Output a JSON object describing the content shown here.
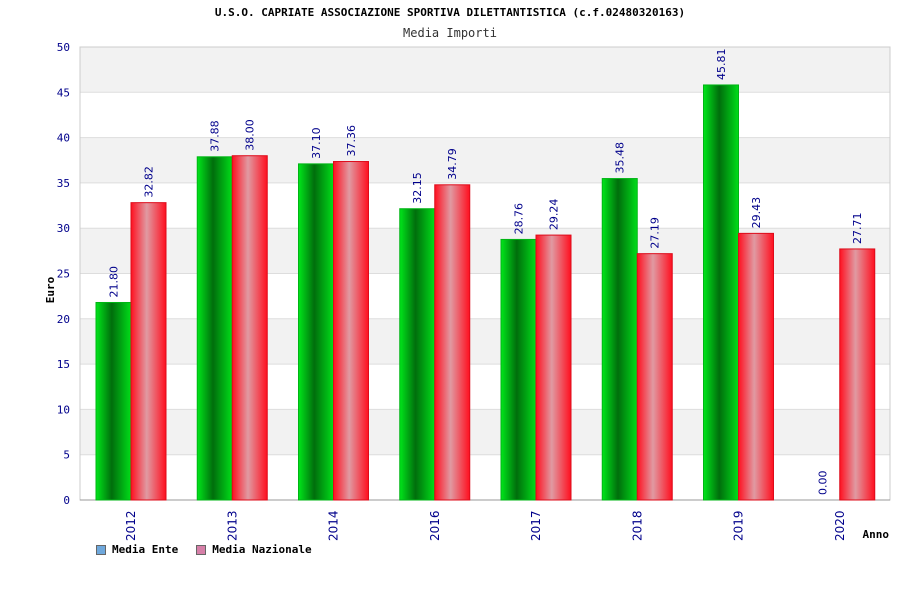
{
  "chart_data": {
    "type": "bar",
    "title": "U.S.O. CAPRIATE ASSOCIAZIONE SPORTIVA DILETTANTISTICA (c.f.02480320163)",
    "subtitle": "Media Importi",
    "xlabel": "Anno",
    "ylabel": "Euro",
    "ylim": [
      0,
      50
    ],
    "ytick_step": 5,
    "yticks": [
      "0",
      "5",
      "10",
      "15",
      "20",
      "25",
      "30",
      "35",
      "40",
      "45",
      "50"
    ],
    "grid": true,
    "legend_position": "bottom-left",
    "categories": [
      "2012",
      "2013",
      "2014",
      "2016",
      "2017",
      "2018",
      "2019",
      "2020"
    ],
    "series": [
      {
        "name": "Media Ente",
        "legend_color": "#6fa8dc",
        "bar_color": "#00cc00",
        "values": [
          21.8,
          37.88,
          37.1,
          32.15,
          28.76,
          35.48,
          45.81,
          0.0
        ],
        "labels": [
          "21.80",
          "37.88",
          "37.10",
          "32.15",
          "28.76",
          "35.48",
          "45.81",
          "0.00"
        ]
      },
      {
        "name": "Media Nazionale",
        "legend_color": "#d67fa8",
        "bar_color": "#ee1122",
        "values": [
          32.82,
          38.0,
          37.36,
          34.79,
          29.24,
          27.19,
          29.43,
          27.71
        ],
        "labels": [
          "32.82",
          "38.00",
          "37.36",
          "34.79",
          "29.24",
          "27.19",
          "29.43",
          "27.71"
        ]
      }
    ]
  }
}
